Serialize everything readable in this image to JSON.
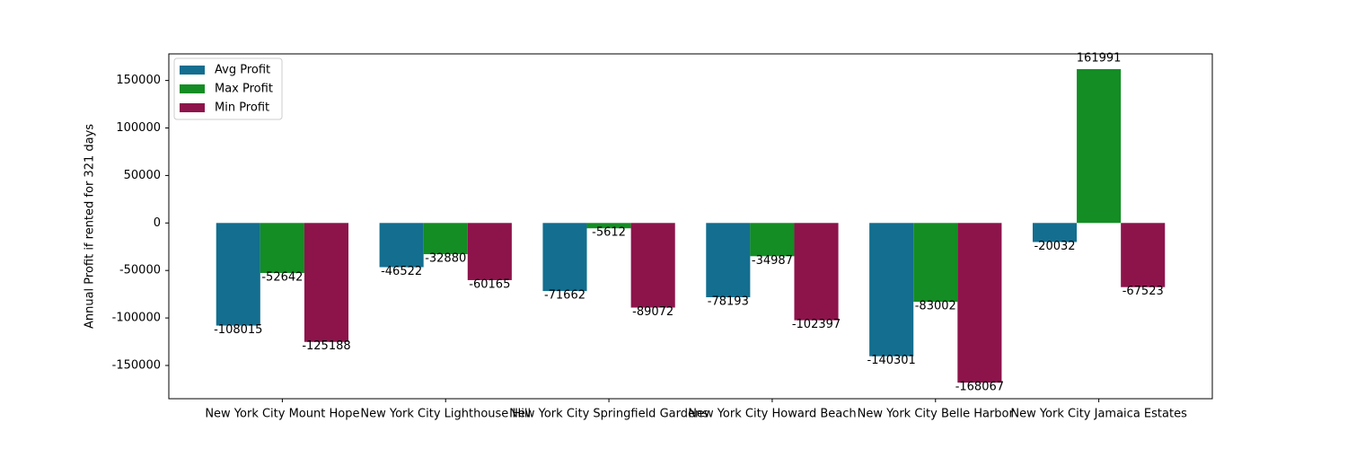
{
  "chart_data": {
    "type": "bar",
    "title": "",
    "xlabel": "",
    "ylabel": "Annual Profit if rented for 321 days",
    "ylim": [
      -185000,
      178000
    ],
    "yticks": [
      150000,
      100000,
      50000,
      0,
      -50000,
      -100000,
      -150000
    ],
    "grid": false,
    "legend_position": "top-left",
    "categories": [
      "New York City Mount Hope",
      "New York City Lighthouse Hill",
      "New York City Springfield Gardens",
      "New York City Howard Beach",
      "New York City Belle Harbor",
      "New York City Jamaica Estates"
    ],
    "series": [
      {
        "name": "Avg Profit",
        "color": "#136e8f",
        "values": [
          -108015,
          -46522,
          -71662,
          -78193,
          -140301,
          -20032
        ]
      },
      {
        "name": "Max Profit",
        "color": "#138d24",
        "values": [
          -52642,
          -32880,
          -5612,
          -34987,
          -83002,
          161991
        ]
      },
      {
        "name": "Min Profit",
        "color": "#8d134b",
        "values": [
          -125188,
          -60165,
          -89072,
          -102397,
          -168067,
          -67523
        ]
      }
    ]
  }
}
